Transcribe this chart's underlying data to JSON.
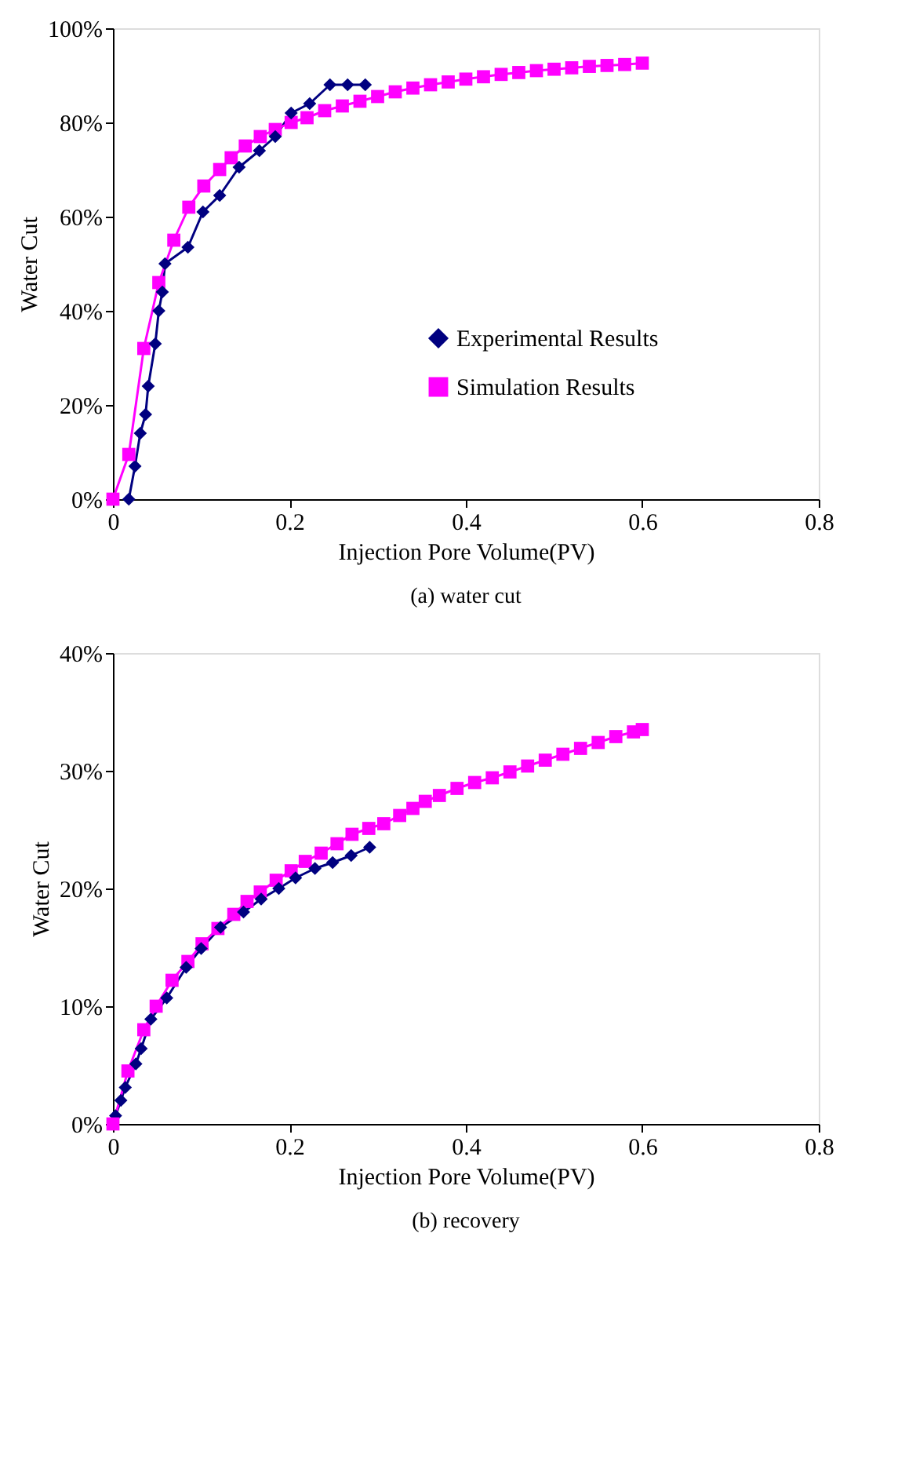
{
  "chart_data": [
    {
      "type": "line",
      "xlabel": "Injection Pore Volume(PV)",
      "ylabel": "Water Cut",
      "annotations": [
        "(a) water cut"
      ],
      "xlim": [
        0,
        0.8
      ],
      "xticks": [
        0,
        0.2,
        0.4,
        0.6,
        0.8
      ],
      "ylim": [
        0,
        100
      ],
      "yticks": [
        {
          "value": 0,
          "label": "0%"
        },
        {
          "value": 20,
          "label": "20%"
        },
        {
          "value": 40,
          "label": "40%"
        },
        {
          "value": 60,
          "label": "60%"
        },
        {
          "value": 80,
          "label": "80%"
        },
        {
          "value": 100,
          "label": "100%"
        }
      ],
      "legend": "bottom right",
      "grid": false,
      "series": [
        {
          "name": "Experimental Results",
          "color": "#000080",
          "marker": "diamond",
          "x": [
            0.018,
            0.025,
            0.031,
            0.037,
            0.04,
            0.048,
            0.052,
            0.056,
            0.059,
            0.085,
            0.102,
            0.121,
            0.143,
            0.166,
            0.184,
            0.202,
            0.223,
            0.246,
            0.266,
            0.286
          ],
          "values": [
            0,
            7,
            14,
            18,
            24,
            33,
            40,
            44,
            50,
            53.5,
            61,
            64.5,
            70.5,
            74,
            77,
            82,
            84,
            88,
            88,
            88
          ]
        },
        {
          "name": "Simulation Results",
          "color": "#ff00ff",
          "marker": "square",
          "x": [
            0,
            0.018,
            0.035,
            0.052,
            0.069,
            0.086,
            0.103,
            0.121,
            0.134,
            0.15,
            0.167,
            0.184,
            0.202,
            0.22,
            0.24,
            0.26,
            0.28,
            0.3,
            0.32,
            0.34,
            0.36,
            0.38,
            0.4,
            0.42,
            0.44,
            0.46,
            0.48,
            0.5,
            0.52,
            0.54,
            0.56,
            0.58,
            0.6
          ],
          "values": [
            0,
            9.5,
            32,
            46,
            55,
            62,
            66.5,
            70,
            72.5,
            75,
            77,
            78.5,
            80,
            81,
            82.5,
            83.5,
            84.5,
            85.5,
            86.5,
            87.3,
            88,
            88.6,
            89.2,
            89.7,
            90.2,
            90.6,
            91,
            91.3,
            91.6,
            91.9,
            92.1,
            92.3,
            92.6
          ]
        }
      ]
    },
    {
      "type": "line",
      "xlabel": "Injection Pore Volume(PV)",
      "ylabel": "Water Cut",
      "annotations": [
        "(b) recovery"
      ],
      "xlim": [
        0,
        0.8
      ],
      "xticks": [
        0,
        0.2,
        0.4,
        0.6,
        0.8
      ],
      "ylim": [
        0,
        40
      ],
      "yticks": [
        {
          "value": 0,
          "label": "0%"
        },
        {
          "value": 10,
          "label": "10%"
        },
        {
          "value": 20,
          "label": "20%"
        },
        {
          "value": 30,
          "label": "30%"
        },
        {
          "value": 40,
          "label": "40%"
        }
      ],
      "legend": "bottom right",
      "grid": false,
      "series": [
        {
          "name": "Experimental Results",
          "color": "#000080",
          "marker": "diamond",
          "x": [
            0.003,
            0.009,
            0.014,
            0.026,
            0.032,
            0.043,
            0.061,
            0.083,
            0.1,
            0.122,
            0.148,
            0.168,
            0.188,
            0.207,
            0.229,
            0.249,
            0.27,
            0.291
          ],
          "values": [
            0.7,
            2,
            3.1,
            5.1,
            6.4,
            8.9,
            10.7,
            13.3,
            14.9,
            16.7,
            18,
            19.1,
            20,
            20.9,
            21.7,
            22.2,
            22.8,
            23.5
          ]
        },
        {
          "name": "Simulation Results",
          "color": "#ff00ff",
          "marker": "square",
          "x": [
            0,
            0.017,
            0.035,
            0.049,
            0.067,
            0.085,
            0.101,
            0.119,
            0.137,
            0.152,
            0.167,
            0.185,
            0.202,
            0.218,
            0.236,
            0.254,
            0.271,
            0.29,
            0.307,
            0.325,
            0.34,
            0.354,
            0.37,
            0.39,
            0.41,
            0.43,
            0.45,
            0.47,
            0.49,
            0.51,
            0.53,
            0.55,
            0.57,
            0.59,
            0.6
          ],
          "values": [
            0,
            4.5,
            8,
            10,
            12.2,
            13.8,
            15.3,
            16.6,
            17.8,
            18.9,
            19.7,
            20.7,
            21.5,
            22.3,
            23,
            23.8,
            24.6,
            25.1,
            25.5,
            26.2,
            26.8,
            27.4,
            27.9,
            28.5,
            29,
            29.4,
            29.9,
            30.4,
            30.9,
            31.4,
            31.9,
            32.4,
            32.9,
            33.3,
            33.5
          ]
        }
      ]
    }
  ]
}
